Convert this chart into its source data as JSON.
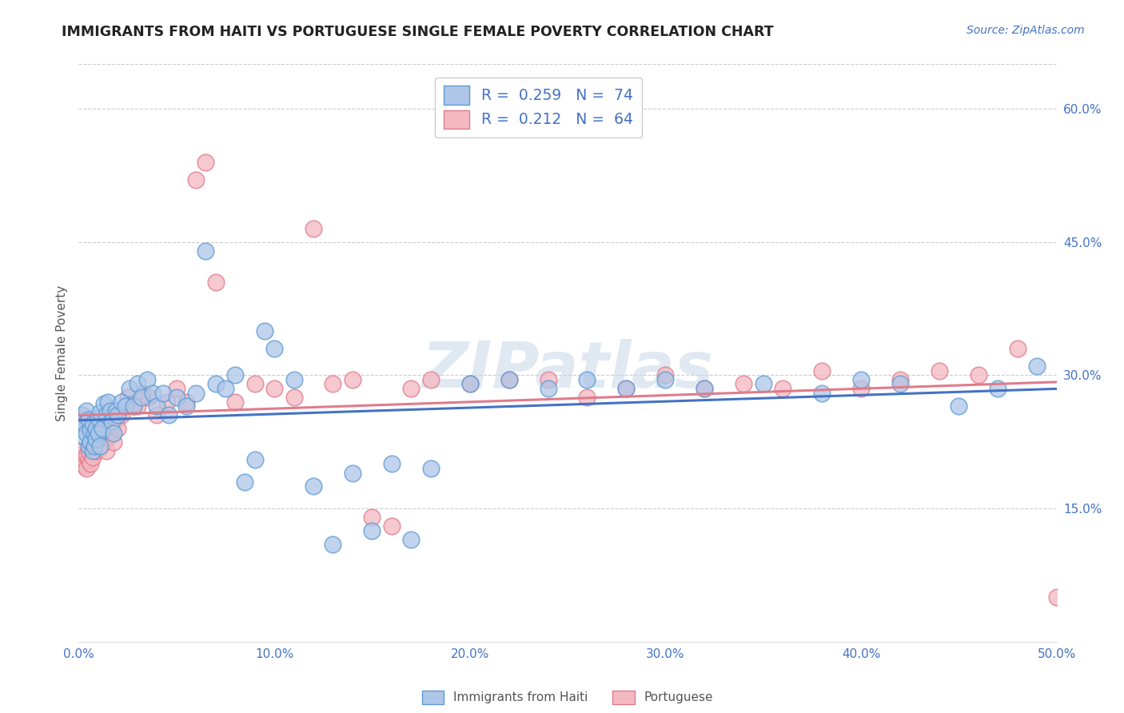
{
  "title": "IMMIGRANTS FROM HAITI VS PORTUGUESE SINGLE FEMALE POVERTY CORRELATION CHART",
  "source": "Source: ZipAtlas.com",
  "ylabel": "Single Female Poverty",
  "xlim": [
    0.0,
    0.5
  ],
  "ylim": [
    0.0,
    0.65
  ],
  "xtick_labels": [
    "0.0%",
    "",
    "10.0%",
    "",
    "20.0%",
    "",
    "30.0%",
    "",
    "40.0%",
    "",
    "50.0%"
  ],
  "xtick_vals": [
    0.0,
    0.05,
    0.1,
    0.15,
    0.2,
    0.25,
    0.3,
    0.35,
    0.4,
    0.45,
    0.5
  ],
  "ytick_labels": [
    "15.0%",
    "30.0%",
    "45.0%",
    "60.0%"
  ],
  "ytick_vals": [
    0.15,
    0.3,
    0.45,
    0.6
  ],
  "haiti_color": "#aec6e8",
  "haiti_edge_color": "#5b9bd5",
  "portuguese_color": "#f4b8c1",
  "portuguese_edge_color": "#e07b8a",
  "trend_haiti_color": "#4472c4",
  "trend_portuguese_color": "#e07b8a",
  "legend_haiti_label": "Immigrants from Haiti",
  "legend_portuguese_label": "Portuguese",
  "R_haiti": "0.259",
  "N_haiti": "74",
  "R_portuguese": "0.212",
  "N_portuguese": "64",
  "watermark": "ZIPatlas",
  "haiti_x": [
    0.001,
    0.002,
    0.002,
    0.003,
    0.003,
    0.004,
    0.004,
    0.005,
    0.005,
    0.006,
    0.006,
    0.007,
    0.007,
    0.008,
    0.008,
    0.009,
    0.009,
    0.01,
    0.01,
    0.011,
    0.011,
    0.012,
    0.013,
    0.014,
    0.015,
    0.016,
    0.017,
    0.018,
    0.019,
    0.02,
    0.022,
    0.024,
    0.026,
    0.028,
    0.03,
    0.032,
    0.035,
    0.038,
    0.04,
    0.043,
    0.046,
    0.05,
    0.055,
    0.06,
    0.065,
    0.07,
    0.075,
    0.08,
    0.085,
    0.09,
    0.095,
    0.1,
    0.11,
    0.12,
    0.13,
    0.14,
    0.15,
    0.16,
    0.17,
    0.18,
    0.2,
    0.22,
    0.24,
    0.26,
    0.28,
    0.3,
    0.32,
    0.35,
    0.38,
    0.4,
    0.42,
    0.45,
    0.47,
    0.49
  ],
  "haiti_y": [
    0.25,
    0.24,
    0.255,
    0.23,
    0.245,
    0.235,
    0.26,
    0.22,
    0.25,
    0.225,
    0.238,
    0.215,
    0.245,
    0.235,
    0.22,
    0.24,
    0.228,
    0.252,
    0.235,
    0.22,
    0.258,
    0.24,
    0.268,
    0.255,
    0.27,
    0.26,
    0.248,
    0.235,
    0.26,
    0.255,
    0.27,
    0.265,
    0.285,
    0.265,
    0.29,
    0.275,
    0.295,
    0.28,
    0.265,
    0.28,
    0.255,
    0.275,
    0.265,
    0.28,
    0.44,
    0.29,
    0.285,
    0.3,
    0.18,
    0.205,
    0.35,
    0.33,
    0.295,
    0.175,
    0.11,
    0.19,
    0.125,
    0.2,
    0.115,
    0.195,
    0.29,
    0.295,
    0.285,
    0.295,
    0.285,
    0.295,
    0.285,
    0.29,
    0.28,
    0.295,
    0.29,
    0.265,
    0.285,
    0.31
  ],
  "portuguese_x": [
    0.001,
    0.002,
    0.002,
    0.003,
    0.003,
    0.004,
    0.004,
    0.005,
    0.005,
    0.006,
    0.007,
    0.008,
    0.009,
    0.01,
    0.011,
    0.012,
    0.013,
    0.014,
    0.015,
    0.016,
    0.017,
    0.018,
    0.019,
    0.02,
    0.022,
    0.025,
    0.028,
    0.03,
    0.033,
    0.036,
    0.04,
    0.045,
    0.05,
    0.055,
    0.06,
    0.065,
    0.07,
    0.08,
    0.09,
    0.1,
    0.11,
    0.12,
    0.13,
    0.14,
    0.15,
    0.16,
    0.17,
    0.18,
    0.2,
    0.22,
    0.24,
    0.26,
    0.28,
    0.3,
    0.32,
    0.34,
    0.36,
    0.38,
    0.4,
    0.42,
    0.44,
    0.46,
    0.48,
    0.5
  ],
  "portuguese_y": [
    0.21,
    0.2,
    0.215,
    0.205,
    0.198,
    0.21,
    0.195,
    0.205,
    0.215,
    0.2,
    0.208,
    0.22,
    0.215,
    0.228,
    0.218,
    0.24,
    0.225,
    0.215,
    0.23,
    0.245,
    0.235,
    0.225,
    0.25,
    0.24,
    0.255,
    0.275,
    0.265,
    0.265,
    0.28,
    0.275,
    0.255,
    0.27,
    0.285,
    0.27,
    0.52,
    0.54,
    0.405,
    0.27,
    0.29,
    0.285,
    0.275,
    0.465,
    0.29,
    0.295,
    0.14,
    0.13,
    0.285,
    0.295,
    0.29,
    0.295,
    0.295,
    0.275,
    0.285,
    0.3,
    0.285,
    0.29,
    0.285,
    0.305,
    0.285,
    0.295,
    0.305,
    0.3,
    0.33,
    0.05
  ]
}
